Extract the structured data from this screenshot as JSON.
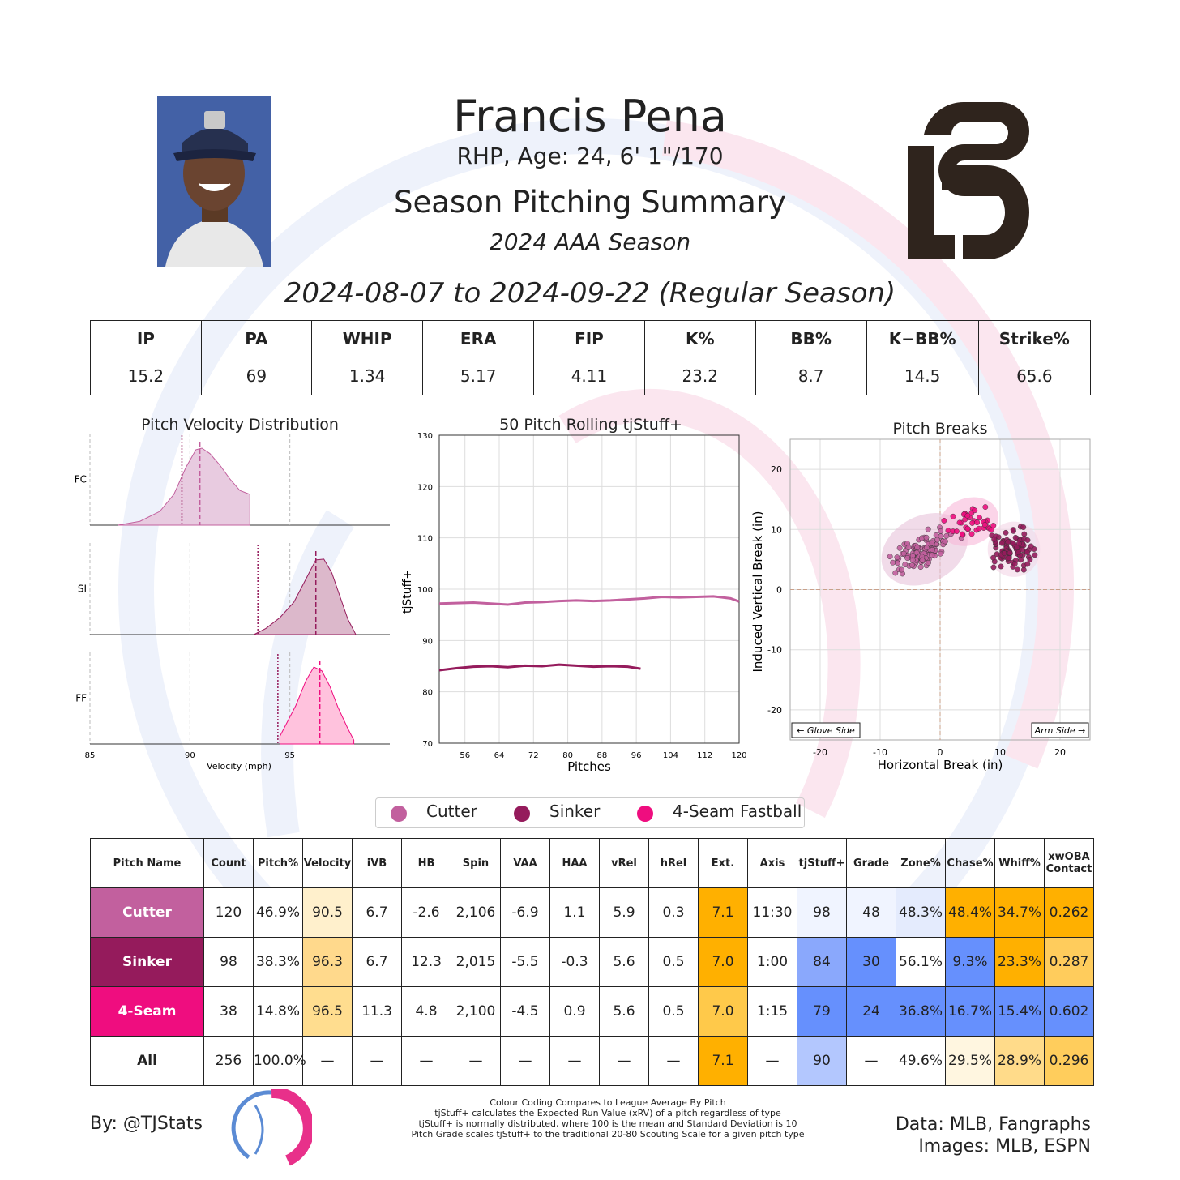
{
  "header": {
    "name": "Francis Pena",
    "bio": "RHP, Age: 24, 6' 1\"/170",
    "summary_title": "Season Pitching Summary",
    "season": "2024 AAA Season",
    "date_range": "2024-08-07 to 2024-09-22 (Regular Season)"
  },
  "colors": {
    "cutter": "#c2609e",
    "sinker": "#951b5c",
    "fourseam": "#ef0d7f",
    "orange": "#ffb000",
    "blue": "#648fff"
  },
  "stats": {
    "headers": [
      "IP",
      "PA",
      "WHIP",
      "ERA",
      "FIP",
      "K%",
      "BB%",
      "K−BB%",
      "Strike%"
    ],
    "values": [
      "15.2",
      "69",
      "1.34",
      "5.17",
      "4.11",
      "23.2",
      "8.7",
      "14.5",
      "65.6"
    ]
  },
  "chart_data": [
    {
      "type": "area",
      "title": "Pitch Velocity Distribution",
      "xlabel": "Velocity (mph)",
      "xlim": [
        85,
        100
      ],
      "xticks": [
        85,
        90,
        95
      ],
      "series": [
        {
          "name": "FC",
          "x": [
            86.4,
            87.5,
            88.5,
            89.2,
            89.8,
            90.3,
            90.6,
            91.0,
            91.5,
            92.0,
            92.5,
            93.0
          ],
          "y": [
            0.0,
            0.05,
            0.18,
            0.4,
            0.75,
            0.98,
            1.0,
            0.93,
            0.78,
            0.6,
            0.45,
            0.4
          ],
          "mean": 90.5,
          "league_mean": 89.6
        },
        {
          "name": "SI",
          "x": [
            93.2,
            93.8,
            94.5,
            95.2,
            95.8,
            96.3,
            96.7,
            97.1,
            97.5,
            97.9,
            98.3
          ],
          "y": [
            0.0,
            0.08,
            0.22,
            0.42,
            0.72,
            0.97,
            0.98,
            0.8,
            0.5,
            0.2,
            0.0
          ],
          "mean": 96.3,
          "league_mean": 93.4
        },
        {
          "name": "FF",
          "x": [
            94.5,
            94.8,
            95.3,
            95.8,
            96.2,
            96.6,
            97.0,
            97.4,
            97.9,
            98.2
          ],
          "y": [
            0.1,
            0.25,
            0.5,
            0.82,
            1.0,
            0.95,
            0.75,
            0.48,
            0.2,
            0.05
          ],
          "mean": 96.5,
          "league_mean": 94.4
        }
      ]
    },
    {
      "type": "line",
      "title": "50 Pitch Rolling tjStuff+",
      "xlabel": "Pitches",
      "ylabel": "tjStuff+",
      "xlim": [
        50,
        120
      ],
      "ylim": [
        70,
        130
      ],
      "xticks": [
        56,
        64,
        72,
        80,
        88,
        96,
        104,
        112,
        120
      ],
      "yticks": [
        70,
        80,
        90,
        100,
        110,
        120,
        130
      ],
      "series": [
        {
          "name": "Cutter",
          "x": [
            50,
            54,
            58,
            62,
            66,
            70,
            74,
            78,
            82,
            86,
            90,
            94,
            98,
            102,
            106,
            110,
            114,
            118,
            120
          ],
          "y": [
            97.2,
            97.3,
            97.4,
            97.2,
            97.0,
            97.4,
            97.5,
            97.7,
            97.8,
            97.7,
            97.8,
            98.0,
            98.2,
            98.5,
            98.4,
            98.5,
            98.6,
            98.2,
            97.6
          ]
        },
        {
          "name": "Sinker",
          "x": [
            50,
            54,
            58,
            62,
            66,
            70,
            74,
            78,
            82,
            86,
            90,
            94,
            97
          ],
          "y": [
            84.2,
            84.6,
            84.9,
            85.0,
            84.8,
            85.1,
            85.0,
            85.3,
            85.1,
            84.9,
            85.0,
            84.9,
            84.5
          ]
        }
      ]
    },
    {
      "type": "scatter",
      "title": "Pitch Breaks",
      "xlabel": "Horizontal Break (in)",
      "ylabel": "Induced Vertical Break (in)",
      "xlim": [
        -25,
        25
      ],
      "ylim": [
        -25,
        25
      ],
      "xticks": [
        -20,
        -10,
        0,
        10,
        20
      ],
      "yticks": [
        -20,
        -10,
        0,
        10,
        20
      ],
      "annotations": [
        "← Glove Side",
        "Arm Side →"
      ],
      "series": [
        {
          "name": "Cutter",
          "center": [
            -2.6,
            6.7
          ],
          "spread": [
            3.3,
            2.4
          ],
          "count": 120
        },
        {
          "name": "Sinker",
          "center": [
            12.3,
            6.7
          ],
          "spread": [
            1.9,
            2.0
          ],
          "count": 98
        },
        {
          "name": "4-Seam Fastball",
          "center": [
            4.8,
            11.3
          ],
          "spread": [
            2.2,
            1.7
          ],
          "count": 38
        }
      ]
    }
  ],
  "legend": [
    "Cutter",
    "Sinker",
    "4-Seam Fastball"
  ],
  "pitch_table": {
    "headers": [
      "Pitch Name",
      "Count",
      "Pitch%",
      "Velocity",
      "iVB",
      "HB",
      "Spin",
      "VAA",
      "HAA",
      "vRel",
      "hRel",
      "Ext.",
      "Axis",
      "tjStuff+",
      "Grade",
      "Zone%",
      "Chase%",
      "Whiff%",
      "xwOBA Contact"
    ],
    "rows": [
      {
        "cells": [
          "Cutter",
          "120",
          "46.9%",
          "90.5",
          "6.7",
          "-2.6",
          "2,106",
          "-6.9",
          "1.1",
          "5.9",
          "0.3",
          "7.1",
          "11:30",
          "98",
          "48",
          "48.3%",
          "48.4%",
          "34.7%",
          "0.262"
        ],
        "bg": [
          "#c2609e",
          "#fff",
          "#fff",
          "#fff0cc",
          "#fff",
          "#fff",
          "#fff",
          "#fff",
          "#fff",
          "#fff",
          "#fff",
          "#ffb000",
          "#fff",
          "#f0f4ff",
          "#f0f4ff",
          "#e4ebfd",
          "#ffb000",
          "#ffb000",
          "#ffb000"
        ]
      },
      {
        "cells": [
          "Sinker",
          "98",
          "38.3%",
          "96.3",
          "6.7",
          "12.3",
          "2,015",
          "-5.5",
          "-0.3",
          "5.6",
          "0.5",
          "7.0",
          "1:00",
          "84",
          "30",
          "56.1%",
          "9.3%",
          "23.3%",
          "0.287"
        ],
        "bg": [
          "#951b5c",
          "#fff",
          "#fff",
          "#ffd98c",
          "#fff",
          "#fff",
          "#fff",
          "#fff",
          "#fff",
          "#fff",
          "#fff",
          "#ffb000",
          "#fff",
          "#8aa8fc",
          "#6690fd",
          "#fff",
          "#6690fd",
          "#ffb000",
          "#ffcc5c"
        ]
      },
      {
        "cells": [
          "4-Seam",
          "38",
          "14.8%",
          "96.5",
          "11.3",
          "4.8",
          "2,100",
          "-4.5",
          "0.9",
          "5.6",
          "0.5",
          "7.0",
          "1:15",
          "79",
          "24",
          "36.8%",
          "16.7%",
          "15.4%",
          "0.602"
        ],
        "bg": [
          "#ef0d7f",
          "#fff",
          "#fff",
          "#ffdd8f",
          "#fff",
          "#fff",
          "#fff",
          "#fff",
          "#fff",
          "#fff",
          "#fff",
          "#ffc94a",
          "#fff",
          "#6690fd",
          "#6690fd",
          "#6690fd",
          "#6690fd",
          "#6690fd",
          "#6690fd"
        ]
      },
      {
        "cells": [
          "All",
          "256",
          "100.0%",
          "—",
          "—",
          "—",
          "—",
          "—",
          "—",
          "—",
          "—",
          "7.1",
          "—",
          "90",
          "—",
          "49.6%",
          "29.5%",
          "28.9%",
          "0.296"
        ],
        "bg": [
          "#fff",
          "#fff",
          "#fff",
          "#fff",
          "#fff",
          "#fff",
          "#fff",
          "#fff",
          "#fff",
          "#fff",
          "#fff",
          "#ffb000",
          "#fff",
          "#b3c7fe",
          "#fff",
          "#fff",
          "#fff6e0",
          "#ffdb8a",
          "#ffcd5c"
        ]
      }
    ]
  },
  "footer": {
    "by": "By: @TJStats",
    "notes": [
      "Colour Coding Compares to League Average By Pitch",
      "tjStuff+ calculates the Expected Run Value (xRV) of a pitch regardless of type",
      "tjStuff+ is normally distributed, where 100 is the mean and Standard Deviation is 10",
      "Pitch Grade scales tjStuff+ to the traditional 20-80 Scouting Scale for a given pitch type"
    ],
    "data_source": "Data: MLB, Fangraphs",
    "images_source": "Images: MLB, ESPN"
  }
}
